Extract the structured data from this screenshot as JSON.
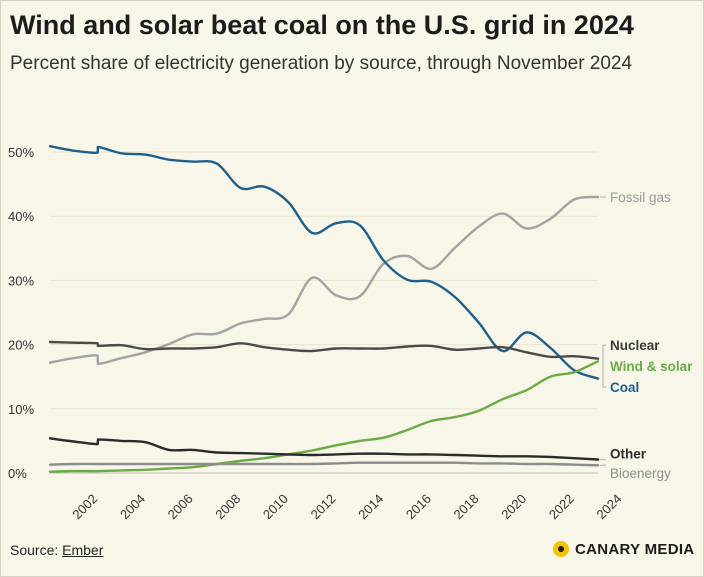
{
  "title": "Wind and solar beat coal on the U.S. grid in 2024",
  "subtitle": "Percent share of electricity generation by source, through November 2024",
  "source_label": "Source:",
  "source_link": "Ember",
  "brand": "CANARY MEDIA",
  "chart_data": {
    "type": "line",
    "xlim": [
      2001,
      2024
    ],
    "ylim": [
      0,
      52
    ],
    "y_ticks": [
      0,
      10,
      20,
      30,
      40,
      50
    ],
    "y_tick_labels": [
      "0%",
      "10%",
      "20%",
      "30%",
      "40%",
      "50%"
    ],
    "x_ticks": [
      2002,
      2004,
      2006,
      2008,
      2010,
      2012,
      2014,
      2016,
      2018,
      2020,
      2022,
      2024
    ],
    "x_tick_labels": [
      "2002",
      "2004",
      "2006",
      "2008",
      "2010",
      "2012",
      "2014",
      "2016",
      "2018",
      "2020",
      "2022",
      "2024"
    ],
    "grid": true,
    "series": [
      {
        "name": "Fossil gas",
        "color": "#a3a3a3",
        "points": [
          [
            2001,
            17.2
          ],
          [
            2002,
            17.9
          ],
          [
            2003,
            18.3
          ],
          [
            2003.01,
            17.0
          ],
          [
            2004,
            17.9
          ],
          [
            2005,
            18.8
          ],
          [
            2006,
            20.1
          ],
          [
            2007,
            21.6
          ],
          [
            2008,
            21.7
          ],
          [
            2009,
            23.3
          ],
          [
            2010,
            24.0
          ],
          [
            2011,
            24.7
          ],
          [
            2012,
            30.4
          ],
          [
            2013,
            27.7
          ],
          [
            2014,
            27.5
          ],
          [
            2015,
            32.6
          ],
          [
            2016,
            33.8
          ],
          [
            2017,
            31.8
          ],
          [
            2018,
            35.1
          ],
          [
            2019,
            38.4
          ],
          [
            2020,
            40.4
          ],
          [
            2021,
            38.1
          ],
          [
            2022,
            39.6
          ],
          [
            2023,
            42.6
          ],
          [
            2024,
            43.0
          ]
        ]
      },
      {
        "name": "Coal",
        "color": "#1f5f8b",
        "points": [
          [
            2001,
            50.9
          ],
          [
            2002,
            50.2
          ],
          [
            2003,
            49.9
          ],
          [
            2003.01,
            50.8
          ],
          [
            2004,
            49.8
          ],
          [
            2005,
            49.6
          ],
          [
            2006,
            48.8
          ],
          [
            2007,
            48.5
          ],
          [
            2008,
            48.2
          ],
          [
            2009,
            44.4
          ],
          [
            2010,
            44.6
          ],
          [
            2011,
            42.2
          ],
          [
            2012,
            37.4
          ],
          [
            2013,
            38.9
          ],
          [
            2014,
            38.6
          ],
          [
            2015,
            33.1
          ],
          [
            2016,
            30.1
          ],
          [
            2017,
            29.8
          ],
          [
            2018,
            27.4
          ],
          [
            2019,
            23.4
          ],
          [
            2020,
            19.0
          ],
          [
            2021,
            21.9
          ],
          [
            2022,
            19.5
          ],
          [
            2023,
            16.0
          ],
          [
            2024,
            14.7
          ]
        ]
      },
      {
        "name": "Nuclear",
        "color": "#4a4a4a",
        "points": [
          [
            2001,
            20.4
          ],
          [
            2002,
            20.3
          ],
          [
            2003,
            20.2
          ],
          [
            2003.01,
            19.8
          ],
          [
            2004,
            19.9
          ],
          [
            2005,
            19.3
          ],
          [
            2006,
            19.4
          ],
          [
            2007,
            19.4
          ],
          [
            2008,
            19.6
          ],
          [
            2009,
            20.2
          ],
          [
            2010,
            19.6
          ],
          [
            2011,
            19.2
          ],
          [
            2012,
            19.0
          ],
          [
            2013,
            19.4
          ],
          [
            2014,
            19.4
          ],
          [
            2015,
            19.4
          ],
          [
            2016,
            19.7
          ],
          [
            2017,
            19.8
          ],
          [
            2018,
            19.2
          ],
          [
            2019,
            19.4
          ],
          [
            2020,
            19.6
          ],
          [
            2021,
            18.8
          ],
          [
            2022,
            18.1
          ],
          [
            2023,
            18.2
          ],
          [
            2024,
            17.8
          ]
        ]
      },
      {
        "name": "Wind & solar",
        "color": "#6aab45",
        "points": [
          [
            2001,
            0.2
          ],
          [
            2002,
            0.3
          ],
          [
            2003,
            0.3
          ],
          [
            2004,
            0.4
          ],
          [
            2005,
            0.5
          ],
          [
            2006,
            0.7
          ],
          [
            2007,
            0.9
          ],
          [
            2008,
            1.4
          ],
          [
            2009,
            1.9
          ],
          [
            2010,
            2.3
          ],
          [
            2011,
            2.9
          ],
          [
            2012,
            3.5
          ],
          [
            2013,
            4.3
          ],
          [
            2014,
            5.0
          ],
          [
            2015,
            5.5
          ],
          [
            2016,
            6.7
          ],
          [
            2017,
            8.1
          ],
          [
            2018,
            8.7
          ],
          [
            2019,
            9.7
          ],
          [
            2020,
            11.5
          ],
          [
            2021,
            12.9
          ],
          [
            2022,
            15.0
          ],
          [
            2023,
            15.7
          ],
          [
            2024,
            17.4
          ]
        ]
      },
      {
        "name": "Other",
        "color": "#2b2b2b",
        "points": [
          [
            2001,
            5.4
          ],
          [
            2002,
            4.9
          ],
          [
            2003,
            4.5
          ],
          [
            2003.01,
            5.2
          ],
          [
            2004,
            5.0
          ],
          [
            2005,
            4.8
          ],
          [
            2006,
            3.6
          ],
          [
            2007,
            3.6
          ],
          [
            2008,
            3.2
          ],
          [
            2009,
            3.1
          ],
          [
            2010,
            3.0
          ],
          [
            2011,
            2.9
          ],
          [
            2012,
            2.8
          ],
          [
            2013,
            2.9
          ],
          [
            2014,
            3.0
          ],
          [
            2015,
            3.0
          ],
          [
            2016,
            2.9
          ],
          [
            2017,
            2.9
          ],
          [
            2018,
            2.8
          ],
          [
            2019,
            2.7
          ],
          [
            2020,
            2.6
          ],
          [
            2021,
            2.6
          ],
          [
            2022,
            2.5
          ],
          [
            2023,
            2.3
          ],
          [
            2024,
            2.1
          ]
        ]
      },
      {
        "name": "Bioenergy",
        "color": "#8c8c8c",
        "points": [
          [
            2001,
            1.3
          ],
          [
            2002,
            1.4
          ],
          [
            2003,
            1.4
          ],
          [
            2004,
            1.4
          ],
          [
            2005,
            1.4
          ],
          [
            2006,
            1.4
          ],
          [
            2007,
            1.4
          ],
          [
            2008,
            1.4
          ],
          [
            2009,
            1.4
          ],
          [
            2010,
            1.4
          ],
          [
            2011,
            1.4
          ],
          [
            2012,
            1.4
          ],
          [
            2013,
            1.5
          ],
          [
            2014,
            1.6
          ],
          [
            2015,
            1.6
          ],
          [
            2016,
            1.6
          ],
          [
            2017,
            1.6
          ],
          [
            2018,
            1.6
          ],
          [
            2019,
            1.5
          ],
          [
            2020,
            1.5
          ],
          [
            2021,
            1.4
          ],
          [
            2022,
            1.4
          ],
          [
            2023,
            1.3
          ],
          [
            2024,
            1.2
          ]
        ]
      }
    ],
    "labels": [
      {
        "text": "Fossil gas",
        "color": "#9b9b9b",
        "bold": false,
        "value": 43.0
      },
      {
        "text": "Nuclear",
        "color": "#3a3a3a",
        "bold": true,
        "value": 19.9
      },
      {
        "text": "Wind & solar",
        "color": "#6aab45",
        "bold": true,
        "value": 16.7
      },
      {
        "text": "Coal",
        "color": "#1f5f8b",
        "bold": true,
        "value": 13.4
      },
      {
        "text": "Other",
        "color": "#2b2b2b",
        "bold": true,
        "value": 3.0
      },
      {
        "text": "Bioenergy",
        "color": "#8c8c8c",
        "bold": false,
        "value": 0.0
      }
    ],
    "bracket_labels": [
      "Nuclear",
      "Wind & solar",
      "Coal"
    ]
  }
}
